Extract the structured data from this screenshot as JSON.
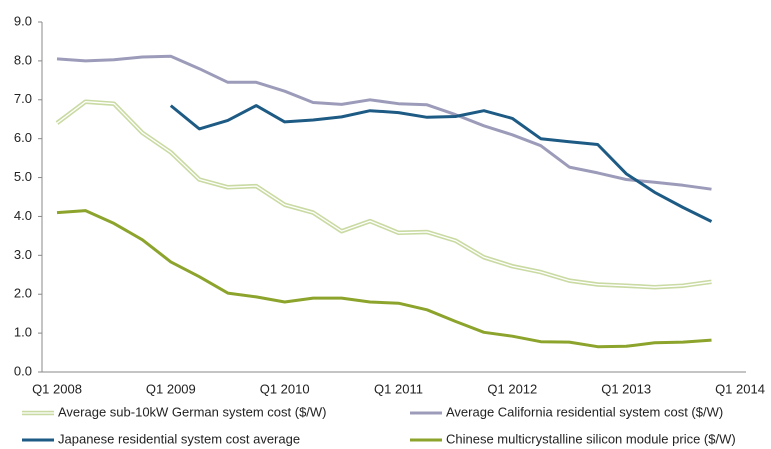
{
  "chart_data": {
    "type": "line",
    "categories": [
      "Q1 2008",
      null,
      null,
      null,
      "Q1 2009",
      null,
      null,
      null,
      "Q1 2010",
      null,
      null,
      null,
      "Q1 2011",
      null,
      null,
      null,
      "Q1 2012",
      null,
      null,
      null,
      "Q1 2013",
      null,
      null,
      null,
      "Q1 2014"
    ],
    "series": [
      {
        "name": "Average sub-10kW German system cost ($/W)",
        "color": "#c9daa2",
        "values": [
          6.4,
          6.95,
          6.9,
          6.15,
          5.65,
          4.95,
          4.75,
          4.78,
          4.3,
          4.1,
          3.62,
          3.88,
          3.58,
          3.6,
          3.38,
          2.95,
          2.72,
          2.57,
          2.35,
          2.25,
          2.22,
          2.18,
          2.22,
          2.32,
          null
        ]
      },
      {
        "name": "Average California residential system cost ($/W)",
        "color": "#9c9cba",
        "values": [
          8.05,
          8.0,
          8.03,
          8.1,
          8.12,
          7.8,
          7.45,
          7.45,
          7.22,
          6.93,
          6.88,
          7.0,
          6.9,
          6.87,
          6.62,
          6.33,
          6.1,
          5.82,
          5.27,
          5.12,
          4.95,
          4.88,
          4.8,
          4.7,
          null
        ]
      },
      {
        "name": "Japanese residential system cost average",
        "color": "#1d5a84",
        "values": [
          null,
          null,
          null,
          null,
          6.85,
          6.25,
          6.47,
          6.85,
          6.43,
          6.48,
          6.56,
          6.72,
          6.67,
          6.55,
          6.57,
          6.72,
          6.52,
          6.0,
          5.92,
          5.85,
          5.1,
          4.62,
          4.23,
          3.87,
          null
        ]
      },
      {
        "name": "Chinese multicrystalline silicon module price ($/W)",
        "color": "#8ca32c",
        "values": [
          4.1,
          4.15,
          3.82,
          3.4,
          2.83,
          2.45,
          2.03,
          1.93,
          1.8,
          1.9,
          1.9,
          1.8,
          1.77,
          1.6,
          1.3,
          1.02,
          0.92,
          0.78,
          0.77,
          0.65,
          0.66,
          0.75,
          0.77,
          0.82,
          null
        ]
      }
    ],
    "ylim": [
      0,
      9
    ],
    "yticks": [
      {
        "value": 0,
        "label": "0.0"
      },
      {
        "value": 1,
        "label": "1.0"
      },
      {
        "value": 2,
        "label": "2.0"
      },
      {
        "value": 3,
        "label": "3.0"
      },
      {
        "value": 4,
        "label": "4.0"
      },
      {
        "value": 5,
        "label": "5.0"
      },
      {
        "value": 6,
        "label": "6.0"
      },
      {
        "value": 7,
        "label": "7.0"
      },
      {
        "value": 8,
        "label": "8.0"
      },
      {
        "value": 9,
        "label": "9.0"
      }
    ],
    "grid": false
  }
}
